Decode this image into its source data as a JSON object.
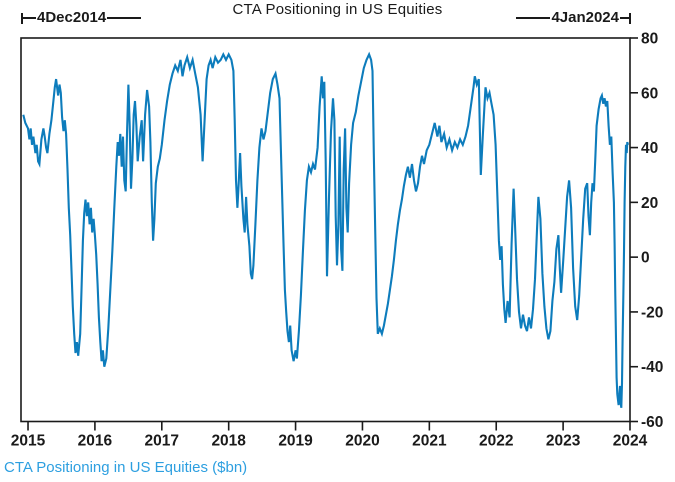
{
  "figure": {
    "title": "CTA Positioning in US Equities",
    "caption": "CTA Positioning in US Equities ($bn)",
    "annotation_left": "4Dec2014",
    "annotation_right": "4Jan2024"
  },
  "colors": {
    "line": "#0d7cbc",
    "caption": "#2d9fe0",
    "axis": "#1a1a1a",
    "background": "#ffffff"
  },
  "chart_data": {
    "type": "line",
    "title": "CTA Positioning in US Equities",
    "series_name": "CTA Positioning in US Equities ($bn)",
    "unit": "$bn",
    "date_start": "4Dec2014",
    "date_end": "4Jan2024",
    "x_ticks": [
      2015,
      2016,
      2017,
      2018,
      2019,
      2020,
      2021,
      2022,
      2023,
      2024
    ],
    "y_ticks": [
      80,
      60,
      40,
      20,
      0,
      -20,
      -40,
      -60
    ],
    "xlim": [
      2014.895,
      2024.0
    ],
    "ylim": [
      -60,
      80
    ],
    "grid": false,
    "legend_position": "none",
    "y_axis_side": "right",
    "points": [
      [
        2014.93,
        52
      ],
      [
        2014.96,
        49
      ],
      [
        2015.0,
        47
      ],
      [
        2015.02,
        43
      ],
      [
        2015.04,
        47
      ],
      [
        2015.06,
        41
      ],
      [
        2015.08,
        44
      ],
      [
        2015.11,
        38
      ],
      [
        2015.13,
        41
      ],
      [
        2015.15,
        35
      ],
      [
        2015.17,
        34
      ],
      [
        2015.2,
        43
      ],
      [
        2015.23,
        47
      ],
      [
        2015.25,
        44
      ],
      [
        2015.27,
        40
      ],
      [
        2015.29,
        38
      ],
      [
        2015.32,
        45
      ],
      [
        2015.35,
        50
      ],
      [
        2015.38,
        57
      ],
      [
        2015.4,
        62
      ],
      [
        2015.42,
        65
      ],
      [
        2015.45,
        59
      ],
      [
        2015.47,
        63
      ],
      [
        2015.49,
        60
      ],
      [
        2015.51,
        51
      ],
      [
        2015.53,
        46
      ],
      [
        2015.55,
        50
      ],
      [
        2015.57,
        45
      ],
      [
        2015.59,
        32
      ],
      [
        2015.61,
        18
      ],
      [
        2015.63,
        8
      ],
      [
        2015.65,
        -5
      ],
      [
        2015.67,
        -18
      ],
      [
        2015.69,
        -28
      ],
      [
        2015.71,
        -35
      ],
      [
        2015.73,
        -31
      ],
      [
        2015.75,
        -36
      ],
      [
        2015.78,
        -28
      ],
      [
        2015.8,
        -12
      ],
      [
        2015.82,
        6
      ],
      [
        2015.84,
        16
      ],
      [
        2015.86,
        21
      ],
      [
        2015.88,
        15
      ],
      [
        2015.9,
        20
      ],
      [
        2015.92,
        12
      ],
      [
        2015.94,
        18
      ],
      [
        2015.96,
        9
      ],
      [
        2015.98,
        14
      ],
      [
        2016.0,
        8
      ],
      [
        2016.02,
        1
      ],
      [
        2016.04,
        -10
      ],
      [
        2016.06,
        -22
      ],
      [
        2016.08,
        -31
      ],
      [
        2016.1,
        -38
      ],
      [
        2016.12,
        -34
      ],
      [
        2016.14,
        -40
      ],
      [
        2016.17,
        -37
      ],
      [
        2016.2,
        -26
      ],
      [
        2016.23,
        -12
      ],
      [
        2016.26,
        2
      ],
      [
        2016.29,
        18
      ],
      [
        2016.32,
        33
      ],
      [
        2016.34,
        42
      ],
      [
        2016.36,
        37
      ],
      [
        2016.38,
        45
      ],
      [
        2016.4,
        33
      ],
      [
        2016.42,
        44
      ],
      [
        2016.44,
        28
      ],
      [
        2016.46,
        24
      ],
      [
        2016.48,
        45
      ],
      [
        2016.5,
        63
      ],
      [
        2016.52,
        48
      ],
      [
        2016.54,
        25
      ],
      [
        2016.56,
        36
      ],
      [
        2016.58,
        52
      ],
      [
        2016.6,
        57
      ],
      [
        2016.62,
        48
      ],
      [
        2016.64,
        35
      ],
      [
        2016.67,
        44
      ],
      [
        2016.7,
        50
      ],
      [
        2016.72,
        35
      ],
      [
        2016.75,
        52
      ],
      [
        2016.78,
        61
      ],
      [
        2016.81,
        55
      ],
      [
        2016.83,
        42
      ],
      [
        2016.85,
        20
      ],
      [
        2016.87,
        6
      ],
      [
        2016.89,
        14
      ],
      [
        2016.91,
        27
      ],
      [
        2016.94,
        33
      ],
      [
        2016.97,
        36
      ],
      [
        2017.0,
        41
      ],
      [
        2017.04,
        50
      ],
      [
        2017.08,
        57
      ],
      [
        2017.12,
        63
      ],
      [
        2017.16,
        67
      ],
      [
        2017.2,
        70
      ],
      [
        2017.24,
        68
      ],
      [
        2017.28,
        72
      ],
      [
        2017.31,
        66
      ],
      [
        2017.34,
        70
      ],
      [
        2017.38,
        73
      ],
      [
        2017.42,
        69
      ],
      [
        2017.46,
        72
      ],
      [
        2017.5,
        67
      ],
      [
        2017.54,
        62
      ],
      [
        2017.58,
        52
      ],
      [
        2017.61,
        35
      ],
      [
        2017.64,
        50
      ],
      [
        2017.67,
        65
      ],
      [
        2017.7,
        70
      ],
      [
        2017.73,
        72
      ],
      [
        2017.76,
        69
      ],
      [
        2017.8,
        73
      ],
      [
        2017.84,
        71
      ],
      [
        2017.88,
        72
      ],
      [
        2017.92,
        74
      ],
      [
        2017.96,
        72
      ],
      [
        2018.0,
        74
      ],
      [
        2018.04,
        72
      ],
      [
        2018.07,
        68
      ],
      [
        2018.09,
        50
      ],
      [
        2018.11,
        28
      ],
      [
        2018.13,
        18
      ],
      [
        2018.15,
        27
      ],
      [
        2018.17,
        38
      ],
      [
        2018.19,
        26
      ],
      [
        2018.22,
        14
      ],
      [
        2018.24,
        9
      ],
      [
        2018.26,
        22
      ],
      [
        2018.28,
        12
      ],
      [
        2018.31,
        4
      ],
      [
        2018.33,
        -6
      ],
      [
        2018.35,
        -8
      ],
      [
        2018.37,
        -3
      ],
      [
        2018.4,
        12
      ],
      [
        2018.43,
        28
      ],
      [
        2018.46,
        40
      ],
      [
        2018.49,
        47
      ],
      [
        2018.52,
        43
      ],
      [
        2018.55,
        46
      ],
      [
        2018.58,
        52
      ],
      [
        2018.62,
        60
      ],
      [
        2018.66,
        65
      ],
      [
        2018.7,
        67
      ],
      [
        2018.73,
        63
      ],
      [
        2018.76,
        58
      ],
      [
        2018.78,
        39
      ],
      [
        2018.8,
        22
      ],
      [
        2018.82,
        5
      ],
      [
        2018.84,
        -12
      ],
      [
        2018.86,
        -20
      ],
      [
        2018.88,
        -27
      ],
      [
        2018.9,
        -31
      ],
      [
        2018.92,
        -25
      ],
      [
        2018.94,
        -34
      ],
      [
        2018.97,
        -38
      ],
      [
        2019.0,
        -34
      ],
      [
        2019.02,
        -37
      ],
      [
        2019.05,
        -27
      ],
      [
        2019.08,
        -14
      ],
      [
        2019.11,
        2
      ],
      [
        2019.14,
        17
      ],
      [
        2019.17,
        28
      ],
      [
        2019.2,
        33
      ],
      [
        2019.23,
        31
      ],
      [
        2019.26,
        34
      ],
      [
        2019.29,
        32
      ],
      [
        2019.33,
        40
      ],
      [
        2019.36,
        55
      ],
      [
        2019.39,
        66
      ],
      [
        2019.41,
        58
      ],
      [
        2019.43,
        64
      ],
      [
        2019.45,
        35
      ],
      [
        2019.47,
        -7
      ],
      [
        2019.5,
        22
      ],
      [
        2019.53,
        46
      ],
      [
        2019.56,
        58
      ],
      [
        2019.58,
        50
      ],
      [
        2019.6,
        15
      ],
      [
        2019.62,
        -3
      ],
      [
        2019.64,
        12
      ],
      [
        2019.66,
        44
      ],
      [
        2019.68,
        3
      ],
      [
        2019.7,
        -5
      ],
      [
        2019.72,
        32
      ],
      [
        2019.74,
        47
      ],
      [
        2019.76,
        18
      ],
      [
        2019.78,
        9
      ],
      [
        2019.8,
        27
      ],
      [
        2019.83,
        41
      ],
      [
        2019.86,
        49
      ],
      [
        2019.9,
        53
      ],
      [
        2019.94,
        59
      ],
      [
        2019.98,
        64
      ],
      [
        2020.02,
        69
      ],
      [
        2020.06,
        72
      ],
      [
        2020.1,
        74
      ],
      [
        2020.13,
        72
      ],
      [
        2020.15,
        68
      ],
      [
        2020.17,
        38
      ],
      [
        2020.19,
        10
      ],
      [
        2020.21,
        -15
      ],
      [
        2020.23,
        -28
      ],
      [
        2020.26,
        -26
      ],
      [
        2020.29,
        -28
      ],
      [
        2020.32,
        -25
      ],
      [
        2020.35,
        -21
      ],
      [
        2020.38,
        -17
      ],
      [
        2020.41,
        -12
      ],
      [
        2020.44,
        -7
      ],
      [
        2020.47,
        -1
      ],
      [
        2020.5,
        6
      ],
      [
        2020.53,
        12
      ],
      [
        2020.56,
        17
      ],
      [
        2020.59,
        21
      ],
      [
        2020.62,
        26
      ],
      [
        2020.65,
        30
      ],
      [
        2020.68,
        33
      ],
      [
        2020.71,
        29
      ],
      [
        2020.74,
        34
      ],
      [
        2020.77,
        28
      ],
      [
        2020.8,
        24
      ],
      [
        2020.83,
        27
      ],
      [
        2020.86,
        33
      ],
      [
        2020.89,
        37
      ],
      [
        2020.92,
        34
      ],
      [
        2020.96,
        39
      ],
      [
        2021.0,
        41
      ],
      [
        2021.04,
        45
      ],
      [
        2021.08,
        49
      ],
      [
        2021.12,
        44
      ],
      [
        2021.15,
        48
      ],
      [
        2021.18,
        42
      ],
      [
        2021.22,
        45
      ],
      [
        2021.26,
        40
      ],
      [
        2021.3,
        43
      ],
      [
        2021.34,
        39
      ],
      [
        2021.38,
        42
      ],
      [
        2021.42,
        40
      ],
      [
        2021.46,
        43
      ],
      [
        2021.5,
        41
      ],
      [
        2021.54,
        44
      ],
      [
        2021.58,
        48
      ],
      [
        2021.62,
        55
      ],
      [
        2021.66,
        62
      ],
      [
        2021.68,
        66
      ],
      [
        2021.71,
        63
      ],
      [
        2021.74,
        65
      ],
      [
        2021.77,
        30
      ],
      [
        2021.8,
        45
      ],
      [
        2021.84,
        62
      ],
      [
        2021.87,
        58
      ],
      [
        2021.9,
        60
      ],
      [
        2021.93,
        56
      ],
      [
        2021.96,
        52
      ],
      [
        2021.99,
        41
      ],
      [
        2022.02,
        20
      ],
      [
        2022.04,
        6
      ],
      [
        2022.06,
        -1
      ],
      [
        2022.08,
        4
      ],
      [
        2022.1,
        -10
      ],
      [
        2022.12,
        -19
      ],
      [
        2022.14,
        -24
      ],
      [
        2022.17,
        -16
      ],
      [
        2022.2,
        -22
      ],
      [
        2022.23,
        5
      ],
      [
        2022.26,
        25
      ],
      [
        2022.28,
        12
      ],
      [
        2022.31,
        -8
      ],
      [
        2022.34,
        -20
      ],
      [
        2022.37,
        -26
      ],
      [
        2022.4,
        -21
      ],
      [
        2022.43,
        -25
      ],
      [
        2022.46,
        -27
      ],
      [
        2022.49,
        -22
      ],
      [
        2022.52,
        -26
      ],
      [
        2022.55,
        -19
      ],
      [
        2022.58,
        -8
      ],
      [
        2022.61,
        10
      ],
      [
        2022.63,
        22
      ],
      [
        2022.66,
        14
      ],
      [
        2022.69,
        -6
      ],
      [
        2022.72,
        -18
      ],
      [
        2022.75,
        -26
      ],
      [
        2022.78,
        -30
      ],
      [
        2022.81,
        -27
      ],
      [
        2022.84,
        -16
      ],
      [
        2022.87,
        -9
      ],
      [
        2022.9,
        3
      ],
      [
        2022.93,
        8
      ],
      [
        2022.95,
        -4
      ],
      [
        2022.97,
        -13
      ],
      [
        2023.0,
        -2
      ],
      [
        2023.03,
        10
      ],
      [
        2023.06,
        22
      ],
      [
        2023.09,
        28
      ],
      [
        2023.12,
        18
      ],
      [
        2023.15,
        -4
      ],
      [
        2023.18,
        -18
      ],
      [
        2023.21,
        -23
      ],
      [
        2023.24,
        -14
      ],
      [
        2023.27,
        0
      ],
      [
        2023.3,
        14
      ],
      [
        2023.33,
        25
      ],
      [
        2023.36,
        27
      ],
      [
        2023.38,
        15
      ],
      [
        2023.4,
        8
      ],
      [
        2023.42,
        20
      ],
      [
        2023.44,
        27
      ],
      [
        2023.46,
        24
      ],
      [
        2023.48,
        35
      ],
      [
        2023.5,
        48
      ],
      [
        2023.53,
        54
      ],
      [
        2023.56,
        58
      ],
      [
        2023.58,
        59
      ],
      [
        2023.6,
        56
      ],
      [
        2023.62,
        58
      ],
      [
        2023.64,
        55
      ],
      [
        2023.66,
        57
      ],
      [
        2023.68,
        48
      ],
      [
        2023.7,
        41
      ],
      [
        2023.72,
        44
      ],
      [
        2023.74,
        31
      ],
      [
        2023.76,
        20
      ],
      [
        2023.77,
        5
      ],
      [
        2023.78,
        -14
      ],
      [
        2023.79,
        -30
      ],
      [
        2023.8,
        -44
      ],
      [
        2023.81,
        -50
      ],
      [
        2023.83,
        -54
      ],
      [
        2023.85,
        -47
      ],
      [
        2023.86,
        -53
      ],
      [
        2023.87,
        -55
      ],
      [
        2023.88,
        -46
      ],
      [
        2023.89,
        -30
      ],
      [
        2023.9,
        -15
      ],
      [
        2023.91,
        2
      ],
      [
        2023.92,
        20
      ],
      [
        2023.93,
        33
      ],
      [
        2023.94,
        41
      ],
      [
        2023.95,
        38
      ],
      [
        2023.96,
        42
      ],
      [
        2023.97,
        41
      ]
    ]
  }
}
